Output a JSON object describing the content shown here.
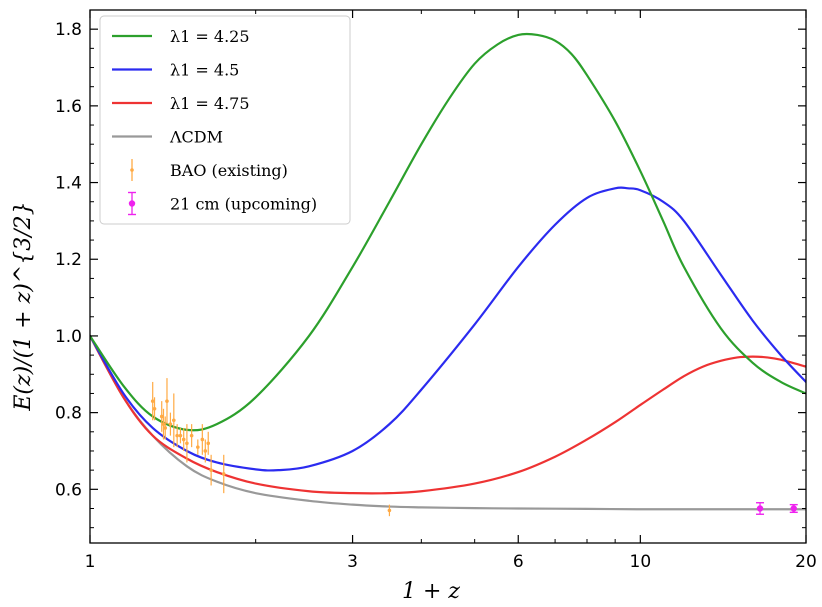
{
  "chart_data": {
    "type": "line",
    "xscale": "log",
    "xlabel": "1 + z",
    "ylabel": "E(z)/(1 + z)^{3/2}",
    "xlim": [
      1,
      20
    ],
    "ylim": [
      0.46,
      1.85
    ],
    "xticks": [
      1,
      3,
      6,
      10,
      20
    ],
    "yticks": [
      0.6,
      0.8,
      1.0,
      1.2,
      1.4,
      1.6,
      1.8
    ],
    "legend_position": "top-left",
    "series": [
      {
        "name": "λ1 = 4.25",
        "color": "#2ca02c",
        "x": [
          1,
          1.15,
          1.3,
          1.5,
          1.7,
          2.0,
          2.5,
          3.0,
          3.5,
          4.0,
          4.5,
          5.0,
          5.5,
          6.0,
          6.5,
          7.0,
          7.5,
          8.0,
          9.0,
          10.0,
          11.0,
          12.0,
          14.0,
          16.0,
          18.0,
          20.0
        ],
        "values": [
          1.0,
          0.87,
          0.79,
          0.755,
          0.77,
          0.84,
          1.0,
          1.18,
          1.35,
          1.5,
          1.62,
          1.71,
          1.76,
          1.785,
          1.785,
          1.77,
          1.735,
          1.68,
          1.56,
          1.43,
          1.3,
          1.18,
          1.02,
          0.93,
          0.88,
          0.85
        ]
      },
      {
        "name": "λ1 = 4.5",
        "color": "#2b2bf0",
        "x": [
          1,
          1.15,
          1.3,
          1.5,
          1.7,
          2.0,
          2.2,
          2.5,
          3.0,
          3.5,
          4.0,
          5.0,
          6.0,
          7.0,
          8.0,
          9.0,
          9.5,
          10.0,
          11.0,
          12.0,
          14.0,
          16.0,
          18.0,
          20.0
        ],
        "values": [
          1.0,
          0.85,
          0.76,
          0.7,
          0.67,
          0.652,
          0.65,
          0.66,
          0.7,
          0.77,
          0.86,
          1.03,
          1.18,
          1.29,
          1.36,
          1.385,
          1.385,
          1.38,
          1.35,
          1.3,
          1.16,
          1.04,
          0.95,
          0.88
        ]
      },
      {
        "name": "λ1 = 4.75",
        "color": "#ee3333",
        "x": [
          1,
          1.15,
          1.3,
          1.5,
          1.7,
          2.0,
          2.5,
          3.0,
          3.5,
          4.0,
          5.0,
          6.0,
          7.0,
          8.0,
          9.0,
          10.0,
          11.0,
          12.0,
          13.0,
          14.0,
          15.0,
          16.0,
          17.0,
          18.0,
          20.0
        ],
        "values": [
          1.0,
          0.84,
          0.74,
          0.68,
          0.645,
          0.615,
          0.595,
          0.59,
          0.59,
          0.595,
          0.615,
          0.645,
          0.685,
          0.73,
          0.775,
          0.82,
          0.86,
          0.895,
          0.92,
          0.935,
          0.944,
          0.946,
          0.944,
          0.938,
          0.92
        ]
      },
      {
        "name": "ΛCDM",
        "color": "#999999",
        "x": [
          1,
          1.15,
          1.3,
          1.5,
          1.7,
          2.0,
          2.5,
          3.0,
          3.5,
          4.0,
          5.0,
          6.0,
          8.0,
          10.0,
          14.0,
          20.0
        ],
        "values": [
          1.0,
          0.84,
          0.74,
          0.66,
          0.62,
          0.59,
          0.57,
          0.56,
          0.555,
          0.553,
          0.551,
          0.55,
          0.549,
          0.548,
          0.548,
          0.548
        ]
      }
    ],
    "errorbar_series": [
      {
        "name": "BAO (existing)",
        "color": "#ffaa44",
        "points": [
          {
            "x": 1.3,
            "y": 0.83,
            "err": 0.05
          },
          {
            "x": 1.31,
            "y": 0.81,
            "err": 0.03
          },
          {
            "x": 1.35,
            "y": 0.79,
            "err": 0.04
          },
          {
            "x": 1.36,
            "y": 0.77,
            "err": 0.04
          },
          {
            "x": 1.37,
            "y": 0.76,
            "err": 0.03
          },
          {
            "x": 1.38,
            "y": 0.83,
            "err": 0.06
          },
          {
            "x": 1.4,
            "y": 0.77,
            "err": 0.03
          },
          {
            "x": 1.42,
            "y": 0.78,
            "err": 0.07
          },
          {
            "x": 1.44,
            "y": 0.74,
            "err": 0.03
          },
          {
            "x": 1.46,
            "y": 0.74,
            "err": 0.02
          },
          {
            "x": 1.48,
            "y": 0.73,
            "err": 0.03
          },
          {
            "x": 1.5,
            "y": 0.72,
            "err": 0.05
          },
          {
            "x": 1.53,
            "y": 0.74,
            "err": 0.03
          },
          {
            "x": 1.57,
            "y": 0.71,
            "err": 0.02
          },
          {
            "x": 1.6,
            "y": 0.73,
            "err": 0.04
          },
          {
            "x": 1.62,
            "y": 0.7,
            "err": 0.03
          },
          {
            "x": 1.64,
            "y": 0.72,
            "err": 0.03
          },
          {
            "x": 1.66,
            "y": 0.65,
            "err": 0.04
          },
          {
            "x": 1.75,
            "y": 0.64,
            "err": 0.05
          },
          {
            "x": 3.5,
            "y": 0.545,
            "err": 0.015
          }
        ]
      },
      {
        "name": "21 cm (upcoming)",
        "color": "#ee22ee",
        "points": [
          {
            "x": 16.5,
            "y": 0.55,
            "err": 0.015
          },
          {
            "x": 19.0,
            "y": 0.55,
            "err": 0.01
          }
        ]
      }
    ],
    "legend": {
      "entries": [
        {
          "label": "λ1 = 4.25"
        },
        {
          "label": "λ1 = 4.5"
        },
        {
          "label": "λ1 = 4.75"
        },
        {
          "label": "ΛCDM"
        },
        {
          "label": "BAO (existing)"
        },
        {
          "label": "21 cm (upcoming)"
        }
      ]
    }
  }
}
